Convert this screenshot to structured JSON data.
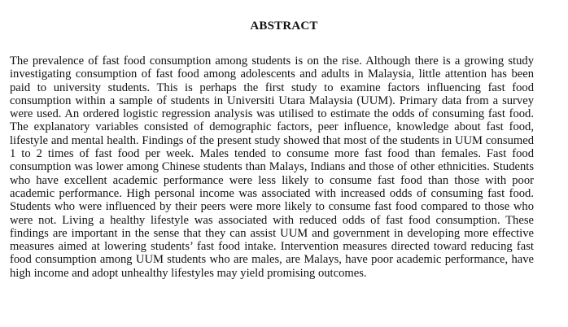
{
  "header_fragment": {
    "left_text": "…",
    "right_text": "…"
  },
  "abstract": {
    "heading": "ABSTRACT",
    "body": "The prevalence of fast food consumption among students is on the rise. Although there is a growing study investigating consumption of fast food among adolescents and adults in Malaysia, little attention has been paid to university students. This is perhaps the first study to examine factors influencing fast food consumption within a sample of students in Universiti Utara Malaysia (UUM). Primary data from a survey were used. An ordered logistic regression analysis was utilised to estimate the odds of consuming fast food. The explanatory variables consisted of demographic factors, peer influence, knowledge about fast food, lifestyle and mental health. Findings of the present study showed that most of the students in UUM consumed 1 to 2 times of fast food per week. Males tended to consume more fast food than females. Fast food consumption was lower among Chinese students than Malays, Indians and those of other ethnicities. Students who have excellent academic performance were less likely to consume fast food than those with poor academic performance. High personal income was associated with increased odds of consuming fast food. Students who were influenced by their peers were more likely to consume fast food compared to those who were not. Living a healthy lifestyle was associated with reduced odds of fast food consumption. These findings are important in the sense that they can assist UUM and government in developing more effective measures aimed at lowering students’ fast food intake. Intervention measures directed toward reducing fast food consumption among UUM students who are males, are Malays, have poor academic performance, have high income and adopt unhealthy lifestyles may yield promising outcomes."
  }
}
